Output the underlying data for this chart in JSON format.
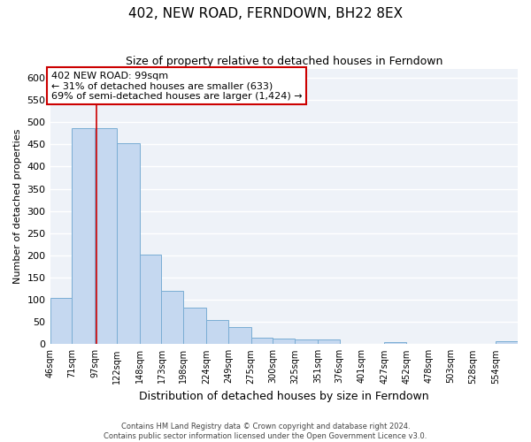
{
  "title": "402, NEW ROAD, FERNDOWN, BH22 8EX",
  "subtitle": "Size of property relative to detached houses in Ferndown",
  "xlabel": "Distribution of detached houses by size in Ferndown",
  "ylabel": "Number of detached properties",
  "bar_color": "#c5d8f0",
  "bar_edge_color": "#7aadd4",
  "background_color": "#eef2f8",
  "grid_color": "#ffffff",
  "bin_edges": [
    46,
    71,
    97,
    122,
    148,
    173,
    198,
    224,
    249,
    275,
    300,
    325,
    351,
    376,
    401,
    427,
    452,
    478,
    503,
    528,
    554
  ],
  "bin_labels": [
    "46sqm",
    "71sqm",
    "97sqm",
    "122sqm",
    "148sqm",
    "173sqm",
    "198sqm",
    "224sqm",
    "249sqm",
    "275sqm",
    "300sqm",
    "325sqm",
    "351sqm",
    "376sqm",
    "401sqm",
    "427sqm",
    "452sqm",
    "478sqm",
    "503sqm",
    "528sqm",
    "554sqm"
  ],
  "bar_heights": [
    105,
    487,
    487,
    452,
    202,
    120,
    82,
    55,
    38,
    15,
    12,
    10,
    10,
    0,
    0,
    5,
    0,
    0,
    0,
    0,
    6
  ],
  "ylim": [
    0,
    620
  ],
  "yticks": [
    0,
    50,
    100,
    150,
    200,
    250,
    300,
    350,
    400,
    450,
    500,
    550,
    600
  ],
  "red_line_x": 99,
  "annotation_title": "402 NEW ROAD: 99sqm",
  "annotation_line1": "← 31% of detached houses are smaller (633)",
  "annotation_line2": "69% of semi-detached houses are larger (1,424) →",
  "annotation_box_color": "#ffffff",
  "annotation_box_edge": "#cc0000",
  "footer_line1": "Contains HM Land Registry data © Crown copyright and database right 2024.",
  "footer_line2": "Contains public sector information licensed under the Open Government Licence v3.0."
}
